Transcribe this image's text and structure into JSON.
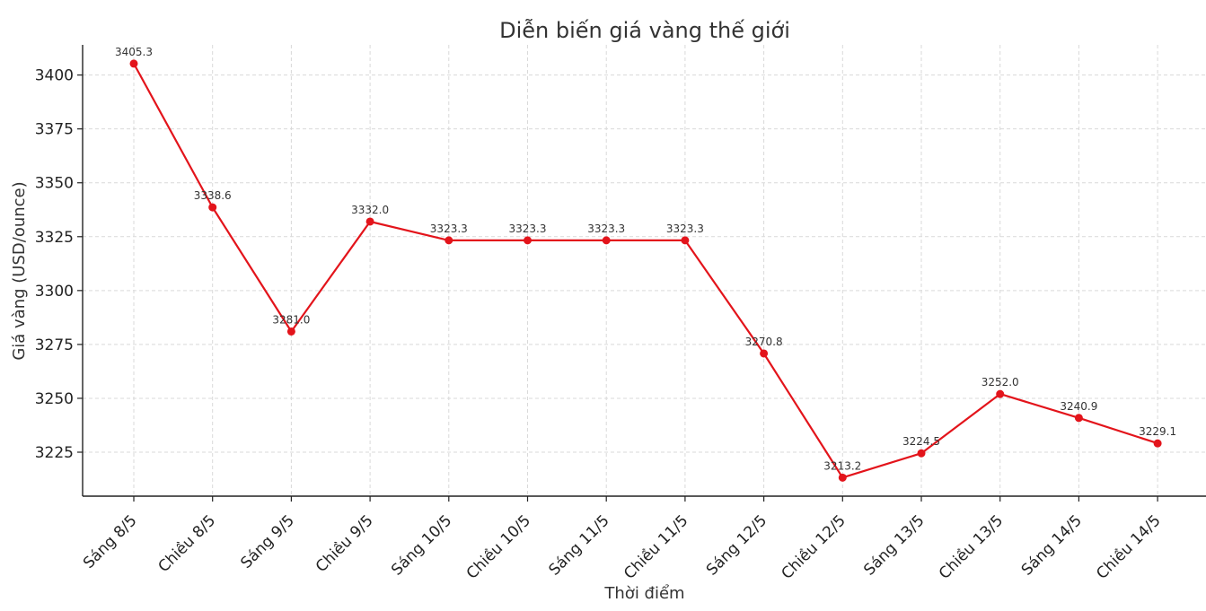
{
  "chart_data": {
    "type": "line",
    "title": "Diễn biến giá vàng thế giới",
    "xlabel": "Thời điểm",
    "ylabel": "Giá vàng (USD/ounce)",
    "categories": [
      "Sáng 8/5",
      "Chiều 8/5",
      "Sáng 9/5",
      "Chiều 9/5",
      "Sáng 10/5",
      "Chiều 10/5",
      "Sáng 11/5",
      "Chiều 11/5",
      "Sáng 12/5",
      "Chiều 12/5",
      "Sáng 13/5",
      "Chiều 13/5",
      "Sáng 14/5",
      "Chiều 14/5"
    ],
    "series": [
      {
        "values": [
          3405.3,
          3338.6,
          3281.0,
          3332.0,
          3323.3,
          3323.3,
          3323.3,
          3323.3,
          3270.8,
          3213.2,
          3224.5,
          3252.0,
          3240.9,
          3229.1
        ],
        "data_labels": [
          "3405.3",
          "3338.6",
          "3281.0",
          "3332.0",
          "3323.3",
          "3323.3",
          "3323.3",
          "3323.3",
          "3270.8",
          "3213.2",
          "3224.5",
          "3252.0",
          "3240.9",
          "3229.1"
        ],
        "color": "#e3141b",
        "marker": "circle"
      }
    ],
    "ylim": [
      3204.6,
      3414.0
    ],
    "yticks": [
      3225,
      3250,
      3275,
      3300,
      3325,
      3350,
      3375,
      3400
    ],
    "ytick_labels": [
      "3225",
      "3250",
      "3275",
      "3300",
      "3325",
      "3350",
      "3375",
      "3400"
    ],
    "grid": true,
    "legend": "none"
  }
}
